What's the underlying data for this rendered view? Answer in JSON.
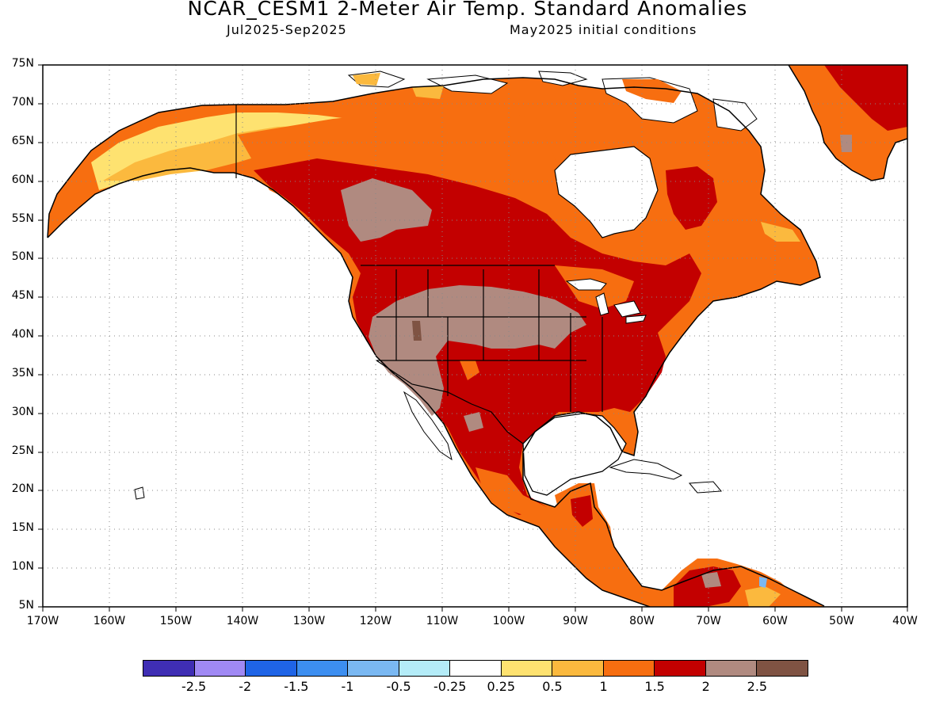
{
  "header": {
    "title": "NCAR_CESM1 2-Meter Air Temp. Standard Anomalies",
    "period": "Jul2025-Sep2025",
    "init": "May2025 initial conditions"
  },
  "map": {
    "region": "North America",
    "projection": "cylindrical-equidistant",
    "extent": {
      "lon": [
        -170,
        -40
      ],
      "lat": [
        5,
        75
      ]
    },
    "ocean_color": "#ffffff",
    "coastline_color": "#000000",
    "grid": "dotted",
    "lat_labels": [
      "75N",
      "70N",
      "65N",
      "60N",
      "55N",
      "50N",
      "45N",
      "40N",
      "35N",
      "30N",
      "25N",
      "20N",
      "15N",
      "10N",
      "5N"
    ],
    "lon_labels": [
      "170W",
      "160W",
      "150W",
      "140W",
      "130W",
      "120W",
      "110W",
      "100W",
      "90W",
      "80W",
      "70W",
      "60W",
      "50W",
      "40W"
    ],
    "anomaly_regions": [
      {
        "area": "Alaska south coast",
        "class": "0.25-0.5"
      },
      {
        "area": "Yukon / northern Canada",
        "class": "1-1.5"
      },
      {
        "area": "Western Canada interior",
        "class": "1.5-2"
      },
      {
        "area": "Northern Rockies / Canadian prairies",
        "class": "2-2.5"
      },
      {
        "area": "US Great Basin and Plains",
        "class": "2-2.5"
      },
      {
        "area": "Southwest US / Mexico",
        "class": "1.5-2"
      },
      {
        "area": "Eastern US",
        "class": "1.5-2"
      },
      {
        "area": "Quebec / Labrador",
        "class": "1-1.5"
      },
      {
        "area": "Greenland",
        "class": "1.5-2"
      },
      {
        "area": "Northern South America",
        "class": "1-1.5"
      }
    ]
  },
  "colorbar": {
    "colors": [
      "#3f2eb4",
      "#a089f4",
      "#1f64e6",
      "#3c8ef0",
      "#7ab8f2",
      "#b4ecf8",
      "#ffffff",
      "#fee270",
      "#fbb93e",
      "#f76e10",
      "#c30000",
      "#b08a80",
      "#7f5343"
    ],
    "labels": [
      "-2.5",
      "-2",
      "-1.5",
      "-1",
      "-0.5",
      "-0.25",
      "0.25",
      "0.5",
      "1",
      "1.5",
      "2",
      "2.5"
    ]
  }
}
